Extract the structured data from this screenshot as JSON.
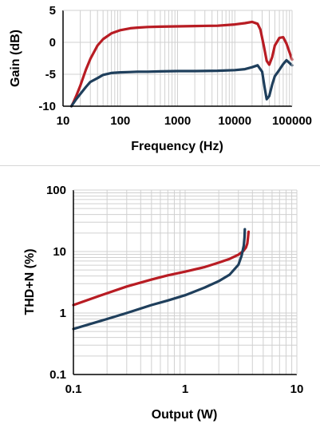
{
  "colors": {
    "background": "#ffffff",
    "grid": "#d0d0d0",
    "axis": "#000000",
    "separator": "#d6d6d6",
    "series_red": "#b81c23",
    "series_blue": "#1f3f5c"
  },
  "chart_data": [
    {
      "type": "line",
      "xlabel": "Frequency (Hz)",
      "ylabel": "Gain (dB)",
      "xscale": "log",
      "xlim": [
        10,
        100000
      ],
      "ylim": [
        -10,
        5
      ],
      "xticks": [
        10,
        100,
        1000,
        10000,
        100000
      ],
      "xtick_labels": [
        "10",
        "100",
        "1000",
        "10000",
        "100000"
      ],
      "yticks": [
        5,
        0,
        -5,
        -10
      ],
      "ytick_labels": [
        "5",
        "0",
        "-5",
        "-10"
      ],
      "grid": true,
      "legend": "none",
      "series": [
        {
          "color": "#b81c23",
          "x": [
            14,
            15,
            17,
            20,
            25,
            30,
            40,
            50,
            70,
            100,
            150,
            200,
            300,
            500,
            1000,
            2000,
            5000,
            10000,
            15000,
            20000,
            25000,
            28000,
            32000,
            36000,
            40000,
            45000,
            50000,
            60000,
            70000,
            80000,
            100000
          ],
          "y": [
            -10,
            -9.5,
            -8.4,
            -6.8,
            -4.3,
            -2.6,
            -0.5,
            0.5,
            1.4,
            1.9,
            2.2,
            2.3,
            2.4,
            2.45,
            2.5,
            2.55,
            2.6,
            2.8,
            3.0,
            3.2,
            2.9,
            2.0,
            -0.5,
            -2.9,
            -3.5,
            -2.3,
            -0.5,
            0.7,
            0.8,
            -0.2,
            -2.7
          ]
        },
        {
          "color": "#1f3f5c",
          "x": [
            14,
            15,
            17,
            20,
            25,
            30,
            40,
            50,
            70,
            100,
            150,
            200,
            300,
            500,
            1000,
            2000,
            5000,
            10000,
            15000,
            20000,
            25000,
            30000,
            33000,
            36000,
            40000,
            45000,
            50000,
            60000,
            70000,
            80000,
            100000
          ],
          "y": [
            -10,
            -9.6,
            -8.9,
            -8.1,
            -7.0,
            -6.2,
            -5.6,
            -5.1,
            -4.8,
            -4.7,
            -4.65,
            -4.6,
            -4.6,
            -4.55,
            -4.5,
            -4.5,
            -4.45,
            -4.35,
            -4.2,
            -3.9,
            -3.6,
            -4.6,
            -7.0,
            -8.9,
            -8.4,
            -6.6,
            -5.3,
            -4.3,
            -3.4,
            -2.8,
            -3.6
          ]
        }
      ]
    },
    {
      "type": "line",
      "xlabel": "Output (W)",
      "ylabel": "THD+N (%)",
      "xscale": "log",
      "yscale": "log",
      "xlim": [
        0.1,
        10
      ],
      "ylim": [
        0.1,
        100
      ],
      "xticks": [
        0.1,
        1,
        10
      ],
      "xtick_labels": [
        "0.1",
        "1",
        "10"
      ],
      "yticks": [
        100,
        10,
        1,
        0.1
      ],
      "ytick_labels": [
        "100",
        "10",
        "1",
        "0.1"
      ],
      "grid": true,
      "legend": "none",
      "series": [
        {
          "color": "#b81c23",
          "x": [
            0.1,
            0.2,
            0.3,
            0.5,
            0.7,
            1,
            1.5,
            2,
            2.5,
            3,
            3.3,
            3.5,
            3.6,
            3.65,
            3.7
          ],
          "y": [
            1.35,
            2.1,
            2.7,
            3.5,
            4.1,
            4.7,
            5.6,
            6.6,
            7.6,
            8.9,
            10.1,
            11.6,
            13.5,
            16.5,
            21
          ]
        },
        {
          "color": "#1f3f5c",
          "x": [
            0.1,
            0.2,
            0.3,
            0.5,
            0.7,
            1,
            1.5,
            2,
            2.5,
            3,
            3.2,
            3.35,
            3.4,
            3.42
          ],
          "y": [
            0.55,
            0.8,
            1.0,
            1.35,
            1.6,
            1.95,
            2.6,
            3.3,
            4.2,
            6.1,
            8.5,
            12.5,
            17,
            23
          ]
        }
      ]
    }
  ]
}
